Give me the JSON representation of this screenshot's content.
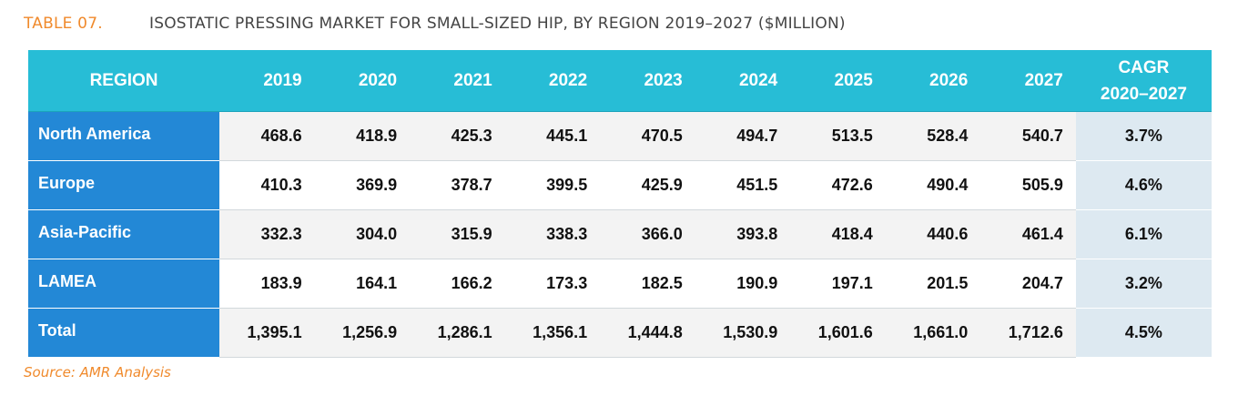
{
  "caption": {
    "label": "TABLE 07.",
    "title": "ISOSTATIC PRESSING MARKET FOR SMALL-SIZED HIP, BY REGION 2019–2027 ($MILLION)"
  },
  "table": {
    "headers": {
      "region": "REGION",
      "years": [
        "2019",
        "2020",
        "2021",
        "2022",
        "2023",
        "2024",
        "2025",
        "2026",
        "2027"
      ],
      "cagr_line1": "CAGR",
      "cagr_line2": "2020–2027"
    },
    "rows": [
      {
        "region": "North America",
        "values": [
          "468.6",
          "418.9",
          "425.3",
          "445.1",
          "470.5",
          "494.7",
          "513.5",
          "528.4",
          "540.7"
        ],
        "cagr": "3.7%"
      },
      {
        "region": "Europe",
        "values": [
          "410.3",
          "369.9",
          "378.7",
          "399.5",
          "425.9",
          "451.5",
          "472.6",
          "490.4",
          "505.9"
        ],
        "cagr": "4.6%"
      },
      {
        "region": "Asia-Pacific",
        "values": [
          "332.3",
          "304.0",
          "315.9",
          "338.3",
          "366.0",
          "393.8",
          "418.4",
          "440.6",
          "461.4"
        ],
        "cagr": "6.1%"
      },
      {
        "region": "LAMEA",
        "values": [
          "183.9",
          "164.1",
          "166.2",
          "173.3",
          "182.5",
          "190.9",
          "197.1",
          "201.5",
          "204.7"
        ],
        "cagr": "3.2%"
      },
      {
        "region": "Total",
        "values": [
          "1,395.1",
          "1,256.9",
          "1,286.1",
          "1,356.1",
          "1,444.8",
          "1,530.9",
          "1,601.6",
          "1,661.0",
          "1,712.6"
        ],
        "cagr": "4.5%"
      }
    ]
  },
  "source": "Source: AMR Analysis",
  "colors": {
    "header_bg": "#27bdd6",
    "region_bg": "#2388d6",
    "cagr_bg": "#dde9f1",
    "accent_orange": "#f08a2c"
  }
}
